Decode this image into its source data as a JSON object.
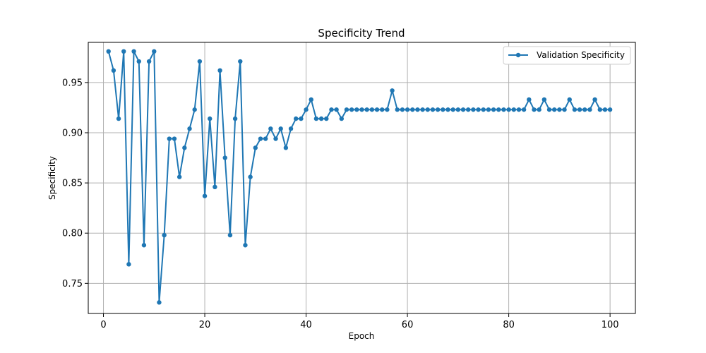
{
  "chart_data": {
    "type": "line",
    "title": "Specificity Trend",
    "xlabel": "Epoch",
    "ylabel": "Specificity",
    "xlim": [
      -3,
      105
    ],
    "ylim": [
      0.72,
      0.99
    ],
    "xticks": [
      0,
      20,
      40,
      60,
      80,
      100
    ],
    "yticks": [
      0.75,
      0.8,
      0.85,
      0.9,
      0.95
    ],
    "ytick_labels": [
      "0.75",
      "0.80",
      "0.85",
      "0.90",
      "0.95"
    ],
    "grid": true,
    "legend_position": "top-right",
    "color": "#1f77b4",
    "series": [
      {
        "name": "Validation Specificity",
        "x": [
          1,
          2,
          3,
          4,
          5,
          6,
          7,
          8,
          9,
          10,
          11,
          12,
          13,
          14,
          15,
          16,
          17,
          18,
          19,
          20,
          21,
          22,
          23,
          24,
          25,
          26,
          27,
          28,
          29,
          30,
          31,
          32,
          33,
          34,
          35,
          36,
          37,
          38,
          39,
          40,
          41,
          42,
          43,
          44,
          45,
          46,
          47,
          48,
          49,
          50,
          51,
          52,
          53,
          54,
          55,
          56,
          57,
          58,
          59,
          60,
          61,
          62,
          63,
          64,
          65,
          66,
          67,
          68,
          69,
          70,
          71,
          72,
          73,
          74,
          75,
          76,
          77,
          78,
          79,
          80,
          81,
          82,
          83,
          84,
          85,
          86,
          87,
          88,
          89,
          90,
          91,
          92,
          93,
          94,
          95,
          96,
          97,
          98,
          99,
          100
        ],
        "values": [
          0.981,
          0.962,
          0.914,
          0.981,
          0.769,
          0.981,
          0.971,
          0.788,
          0.971,
          0.981,
          0.731,
          0.798,
          0.894,
          0.894,
          0.856,
          0.885,
          0.904,
          0.923,
          0.971,
          0.837,
          0.914,
          0.846,
          0.962,
          0.875,
          0.798,
          0.914,
          0.971,
          0.788,
          0.856,
          0.885,
          0.894,
          0.894,
          0.904,
          0.894,
          0.904,
          0.885,
          0.904,
          0.914,
          0.914,
          0.923,
          0.933,
          0.914,
          0.914,
          0.914,
          0.923,
          0.923,
          0.914,
          0.923,
          0.923,
          0.923,
          0.923,
          0.923,
          0.923,
          0.923,
          0.923,
          0.923,
          0.942,
          0.923,
          0.923,
          0.923,
          0.923,
          0.923,
          0.923,
          0.923,
          0.923,
          0.923,
          0.923,
          0.923,
          0.923,
          0.923,
          0.923,
          0.923,
          0.923,
          0.923,
          0.923,
          0.923,
          0.923,
          0.923,
          0.923,
          0.923,
          0.923,
          0.923,
          0.923,
          0.933,
          0.923,
          0.923,
          0.933,
          0.923,
          0.923,
          0.923,
          0.923,
          0.933,
          0.923,
          0.923,
          0.923,
          0.923,
          0.933,
          0.923,
          0.923,
          0.923
        ]
      }
    ]
  }
}
